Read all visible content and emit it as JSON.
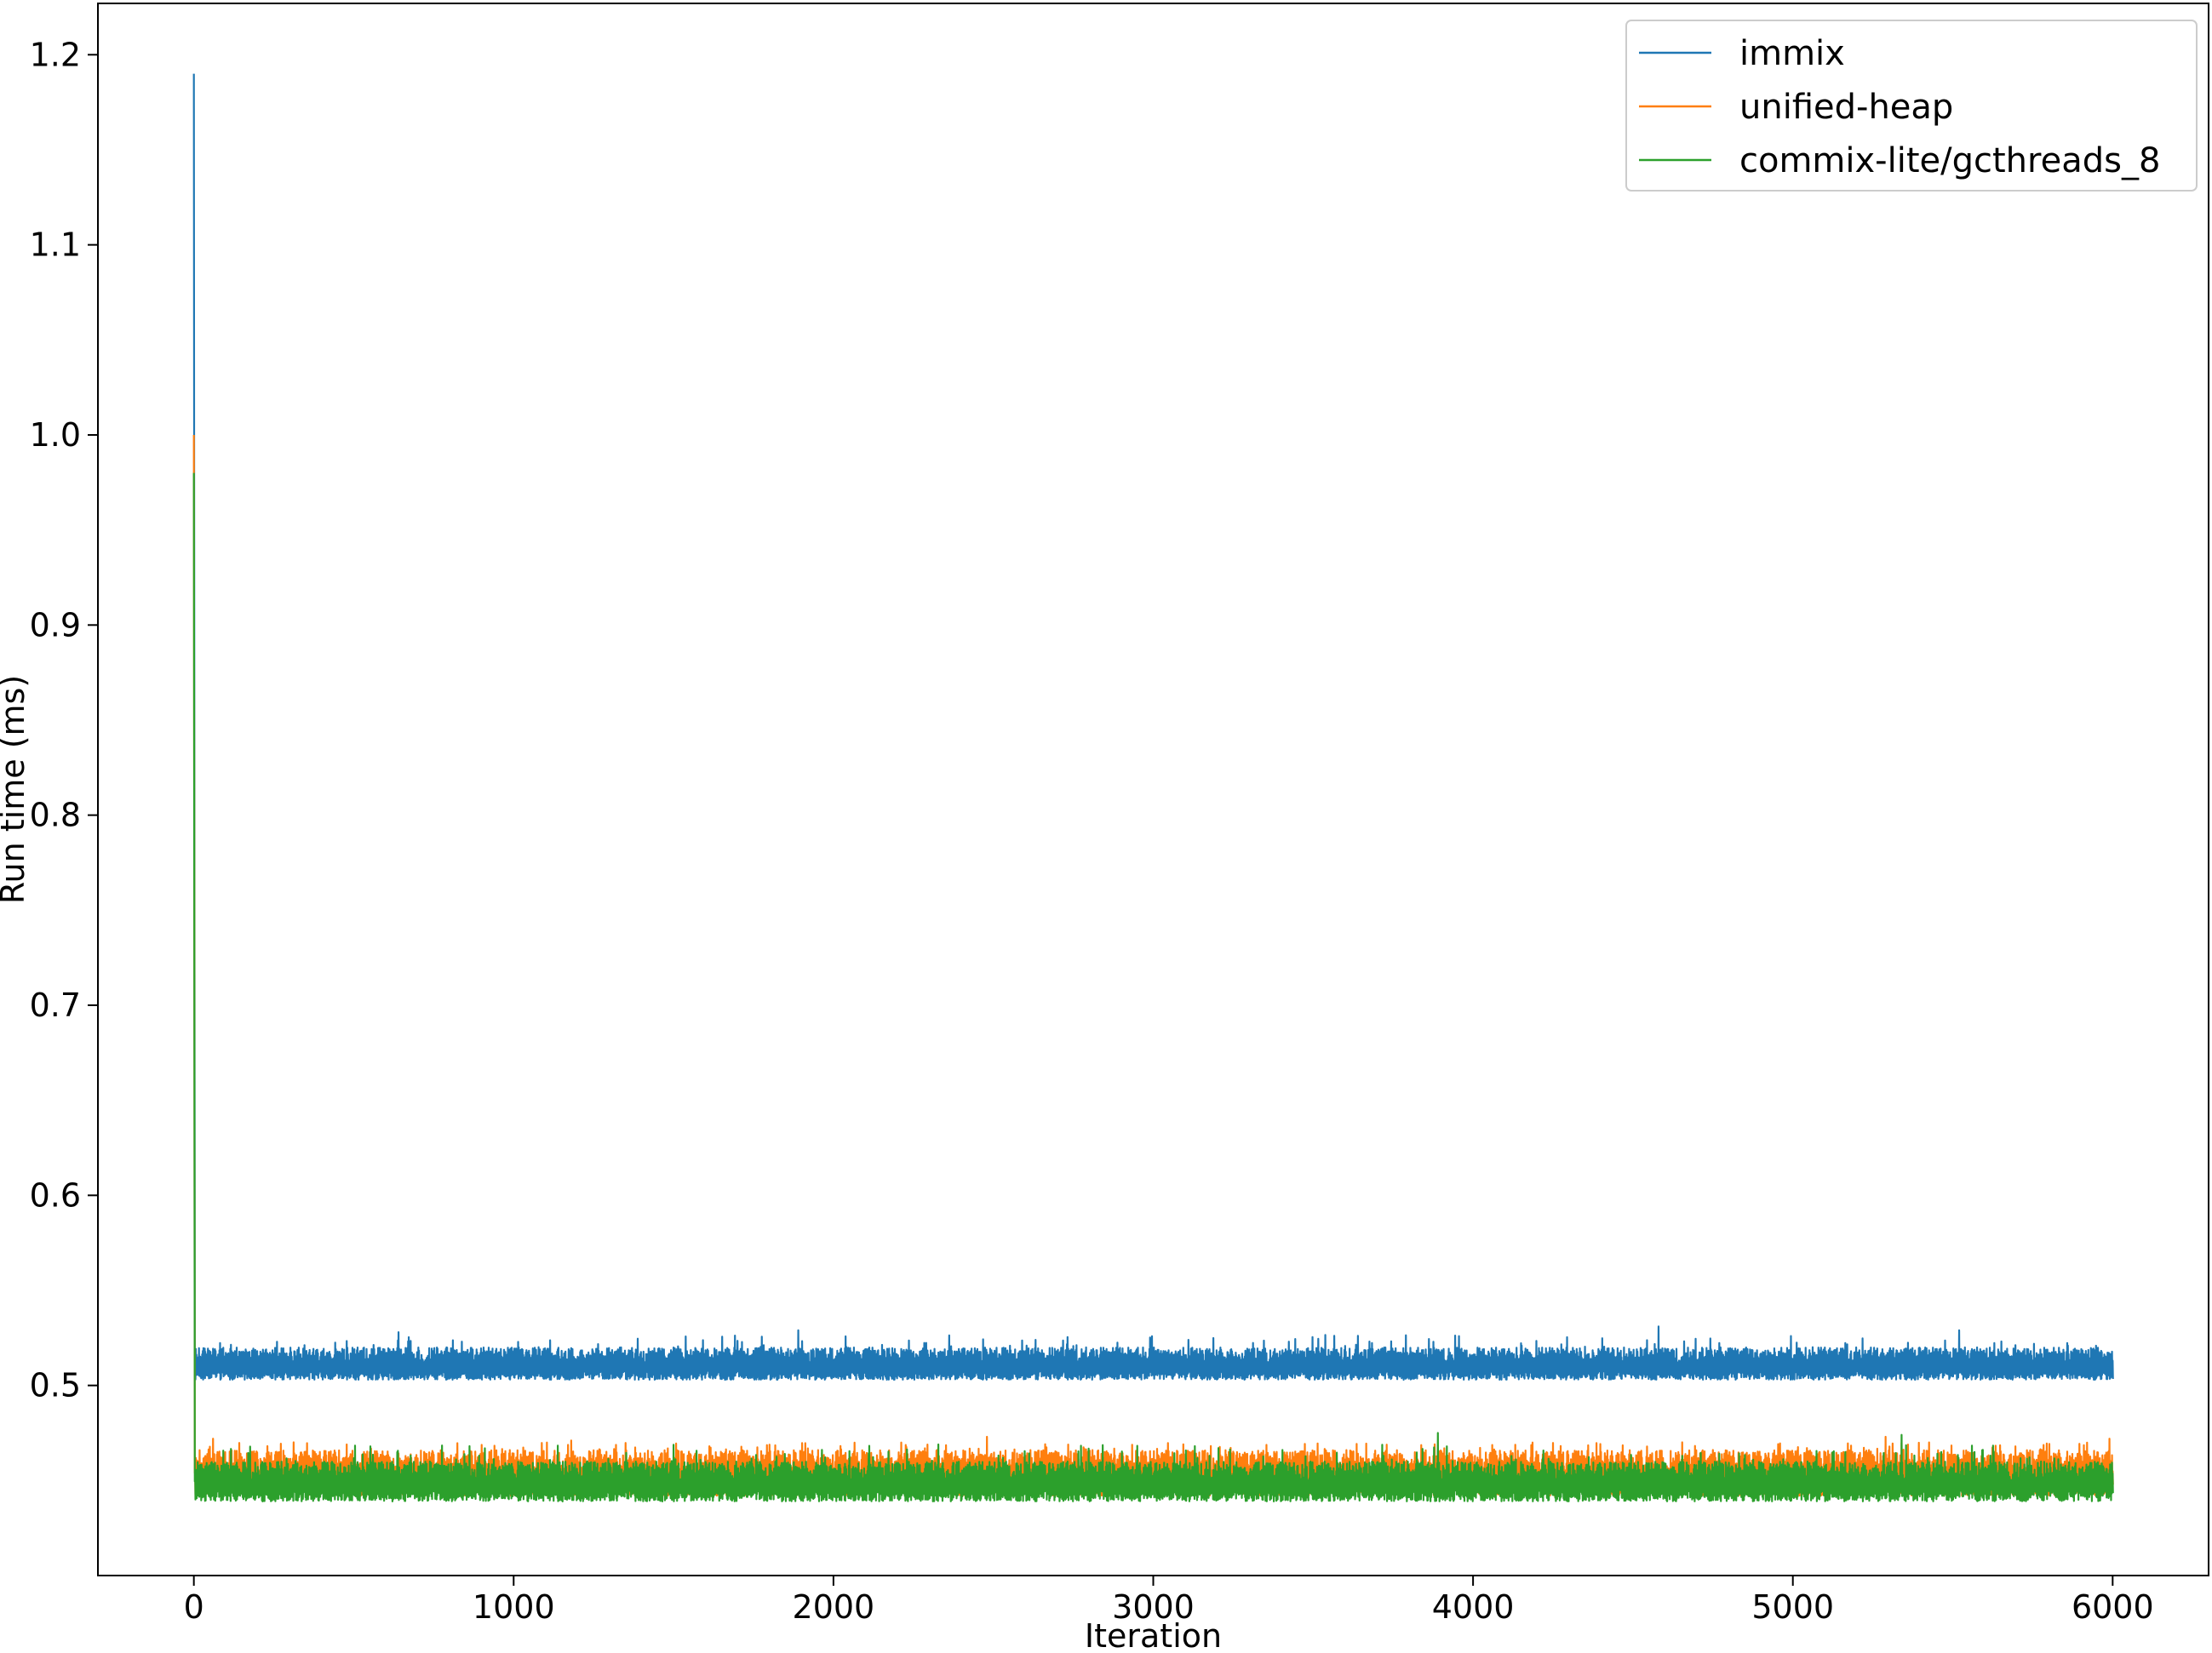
{
  "chart_data": {
    "type": "line",
    "title": "",
    "xlabel": "Iteration",
    "ylabel": "Run time (ms)",
    "xlim": [
      -300,
      6300
    ],
    "ylim": [
      0.4,
      1.227
    ],
    "xticks": [
      0,
      1000,
      2000,
      3000,
      4000,
      5000,
      6000
    ],
    "xtick_labels": [
      "0",
      "1000",
      "2000",
      "3000",
      "4000",
      "5000",
      "6000"
    ],
    "yticks": [
      0.5,
      0.6,
      0.7,
      0.8,
      0.9,
      1.0,
      1.1,
      1.2
    ],
    "ytick_labels": [
      "0.5",
      "0.6",
      "0.7",
      "0.8",
      "0.9",
      "1.0",
      "1.1",
      "1.2"
    ],
    "grid": false,
    "legend_position": "top-right",
    "x_range": [
      0,
      6000
    ],
    "series": [
      {
        "name": "immix",
        "color": "#1f77b4",
        "initial_spike": 1.19,
        "band_low": 0.503,
        "band_high": 0.52,
        "peak_max": 0.531,
        "peaks": [
          [
            640,
            0.528
          ],
          [
            1890,
            0.529
          ],
          [
            4580,
            0.531
          ],
          [
            5520,
            0.529
          ]
        ]
      },
      {
        "name": "unified-heap",
        "color": "#ff7f0e",
        "initial_spike": 1.0,
        "band_low": 0.442,
        "band_high": 0.466,
        "peak_max": 0.473,
        "peaks": [
          [
            60,
            0.472
          ],
          [
            1180,
            0.471
          ],
          [
            2480,
            0.473
          ],
          [
            5290,
            0.473
          ],
          [
            5990,
            0.472
          ]
        ]
      },
      {
        "name": "commix-lite/gcthreads_8",
        "color": "#2ca02c",
        "initial_spike": 0.98,
        "band_low": 0.439,
        "band_high": 0.46,
        "peak_max": 0.475,
        "peaks": [
          [
            3890,
            0.475
          ],
          [
            5340,
            0.474
          ]
        ]
      }
    ]
  }
}
